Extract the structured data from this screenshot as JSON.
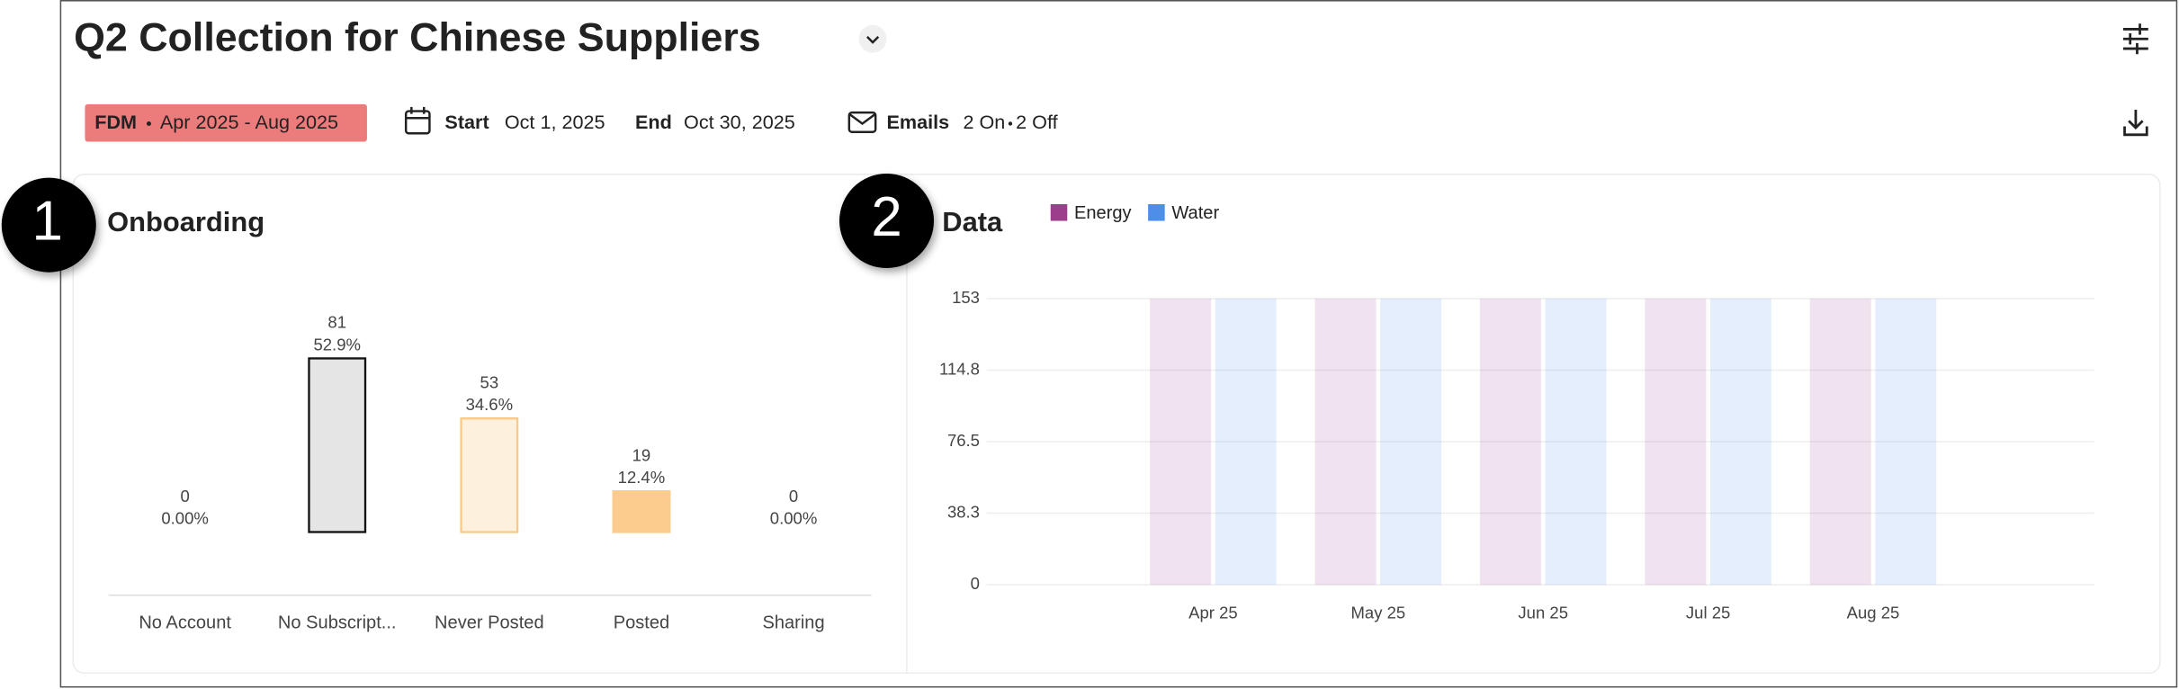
{
  "header": {
    "title": "Q2 Collection for Chinese Suppliers",
    "tag": {
      "label": "FDM",
      "period": "Apr 2025 - Aug 2025"
    },
    "start": {
      "label": "Start",
      "value": "Oct 1, 2025"
    },
    "end": {
      "label": "End",
      "value": "Oct 30, 2025"
    },
    "emails": {
      "label": "Emails",
      "on": "2 On",
      "off": "2 Off"
    }
  },
  "panels": [
    {
      "number": "1",
      "title": "Onboarding"
    },
    {
      "number": "2",
      "title": "Data"
    }
  ],
  "chart_data": [
    {
      "type": "bar",
      "categories": [
        "No Account",
        "No Subscript...",
        "Never Posted",
        "Posted",
        "Sharing"
      ],
      "values": [
        0,
        81,
        53,
        19,
        0
      ],
      "percentage_labels": [
        "0.00%",
        "52.9%",
        "34.6%",
        "12.4%",
        "0.00%"
      ],
      "colors": [
        "#e5e5e5",
        "#e5e5e5",
        "#fdf0dc",
        "#fccb8e",
        "#fccb8e"
      ],
      "edge_colors": [
        "#111111",
        "#111111",
        "#f9c98a",
        "#fccb8e",
        "#fccb8e"
      ]
    },
    {
      "type": "grouped_bar",
      "categories": [
        "Apr 25",
        "May 25",
        "Jun 25",
        "Jul 25",
        "Aug 25"
      ],
      "series": [
        {
          "name": "Energy",
          "color": "#9b3f8a",
          "values": [
            153,
            153,
            153,
            153,
            153
          ]
        },
        {
          "name": "Water",
          "color": "#4b8fe8",
          "values": [
            153,
            153,
            153,
            153,
            153
          ]
        }
      ],
      "ylim": [
        0,
        153
      ],
      "yticks": [
        0,
        38.3,
        76.5,
        114.8,
        153
      ],
      "grid": true,
      "bar_opacity": 0.15
    }
  ]
}
